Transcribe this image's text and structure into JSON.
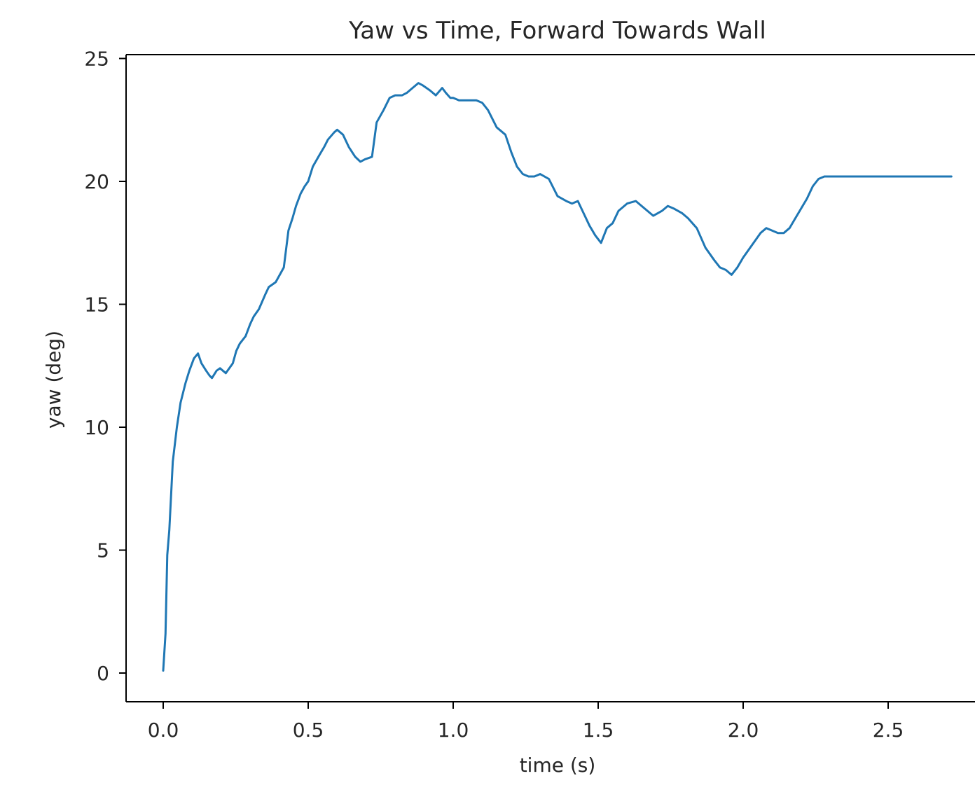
{
  "chart_data": {
    "type": "line",
    "title": "Yaw vs Time, Forward Towards Wall",
    "xlabel": "time (s)",
    "ylabel": "yaw (deg)",
    "xlim": [
      -0.13,
      2.75
    ],
    "ylim": [
      -1.1,
      25.2
    ],
    "xticks": [
      0.0,
      0.5,
      1.0,
      1.5,
      2.0,
      2.5
    ],
    "xtick_labels": [
      "0.0",
      "0.5",
      "1.0",
      "1.5",
      "2.0",
      "2.5"
    ],
    "yticks": [
      0,
      5,
      10,
      15,
      20,
      25
    ],
    "ytick_labels": [
      "0",
      "5",
      "10",
      "15",
      "20",
      "25"
    ],
    "grid": false,
    "legend": "none",
    "line_color": "#1f77b4",
    "series": [
      {
        "x": [
          0.0,
          0.008,
          0.014,
          0.021,
          0.033,
          0.047,
          0.06,
          0.077,
          0.09,
          0.106,
          0.12,
          0.132,
          0.148,
          0.16,
          0.168,
          0.184,
          0.196,
          0.216,
          0.24,
          0.252,
          0.264,
          0.284,
          0.3,
          0.312,
          0.33,
          0.352,
          0.364,
          0.388,
          0.416,
          0.432,
          0.446,
          0.458,
          0.474,
          0.488,
          0.5,
          0.516,
          0.54,
          0.555,
          0.568,
          0.59,
          0.6,
          0.62,
          0.64,
          0.662,
          0.68,
          0.696,
          0.72,
          0.736,
          0.76,
          0.781,
          0.8,
          0.824,
          0.84,
          0.86,
          0.88,
          0.896,
          0.92,
          0.94,
          0.962,
          0.975,
          0.99,
          1.0,
          1.02,
          1.04,
          1.06,
          1.08,
          1.1,
          1.12,
          1.15,
          1.18,
          1.2,
          1.22,
          1.24,
          1.26,
          1.28,
          1.3,
          1.33,
          1.36,
          1.39,
          1.41,
          1.43,
          1.45,
          1.47,
          1.49,
          1.51,
          1.53,
          1.55,
          1.57,
          1.6,
          1.63,
          1.66,
          1.69,
          1.72,
          1.74,
          1.76,
          1.79,
          1.81,
          1.84,
          1.87,
          1.9,
          1.92,
          1.94,
          1.96,
          1.98,
          2.0,
          2.03,
          2.06,
          2.08,
          2.1,
          2.12,
          2.14,
          2.16,
          2.18,
          2.2,
          2.22,
          2.24,
          2.26,
          2.28,
          2.3,
          2.32,
          2.34,
          2.36,
          2.38,
          2.4,
          2.42,
          2.44,
          2.46,
          2.48,
          2.5,
          2.52,
          2.54,
          2.56,
          2.58,
          2.6,
          2.62,
          2.64,
          2.66,
          2.68,
          2.7,
          2.718
        ],
        "y": [
          0.1,
          1.6,
          4.8,
          5.8,
          8.6,
          10.0,
          11.0,
          11.8,
          12.3,
          12.8,
          13.0,
          12.6,
          12.3,
          12.1,
          12.0,
          12.3,
          12.4,
          12.2,
          12.6,
          13.1,
          13.4,
          13.7,
          14.2,
          14.5,
          14.8,
          15.4,
          15.7,
          15.9,
          16.5,
          18.0,
          18.5,
          19.0,
          19.5,
          19.8,
          20.0,
          20.6,
          21.1,
          21.4,
          21.7,
          22.0,
          22.1,
          21.9,
          21.4,
          21.0,
          20.8,
          20.9,
          21.0,
          22.4,
          22.9,
          23.4,
          23.5,
          23.5,
          23.6,
          23.8,
          24.0,
          23.9,
          23.7,
          23.5,
          23.8,
          23.6,
          23.4,
          23.4,
          23.3,
          23.3,
          23.3,
          23.3,
          23.2,
          22.9,
          22.2,
          21.9,
          21.2,
          20.6,
          20.3,
          20.2,
          20.2,
          20.3,
          20.1,
          19.4,
          19.2,
          19.1,
          19.2,
          18.7,
          18.2,
          17.8,
          17.5,
          18.1,
          18.3,
          18.8,
          19.1,
          19.2,
          18.9,
          18.6,
          18.8,
          19.0,
          18.9,
          18.7,
          18.5,
          18.1,
          17.3,
          16.8,
          16.5,
          16.4,
          16.2,
          16.5,
          16.9,
          17.4,
          17.9,
          18.1,
          18.0,
          17.9,
          17.9,
          18.1,
          18.5,
          18.9,
          19.3,
          19.8,
          20.1,
          20.2,
          20.2,
          20.2,
          20.2,
          20.2,
          20.2,
          20.2,
          20.2,
          20.2,
          20.2,
          20.2,
          20.2,
          20.2,
          20.2,
          20.2,
          20.2,
          20.2,
          20.2,
          20.2,
          20.2,
          20.2,
          20.2,
          20.2
        ]
      }
    ]
  }
}
